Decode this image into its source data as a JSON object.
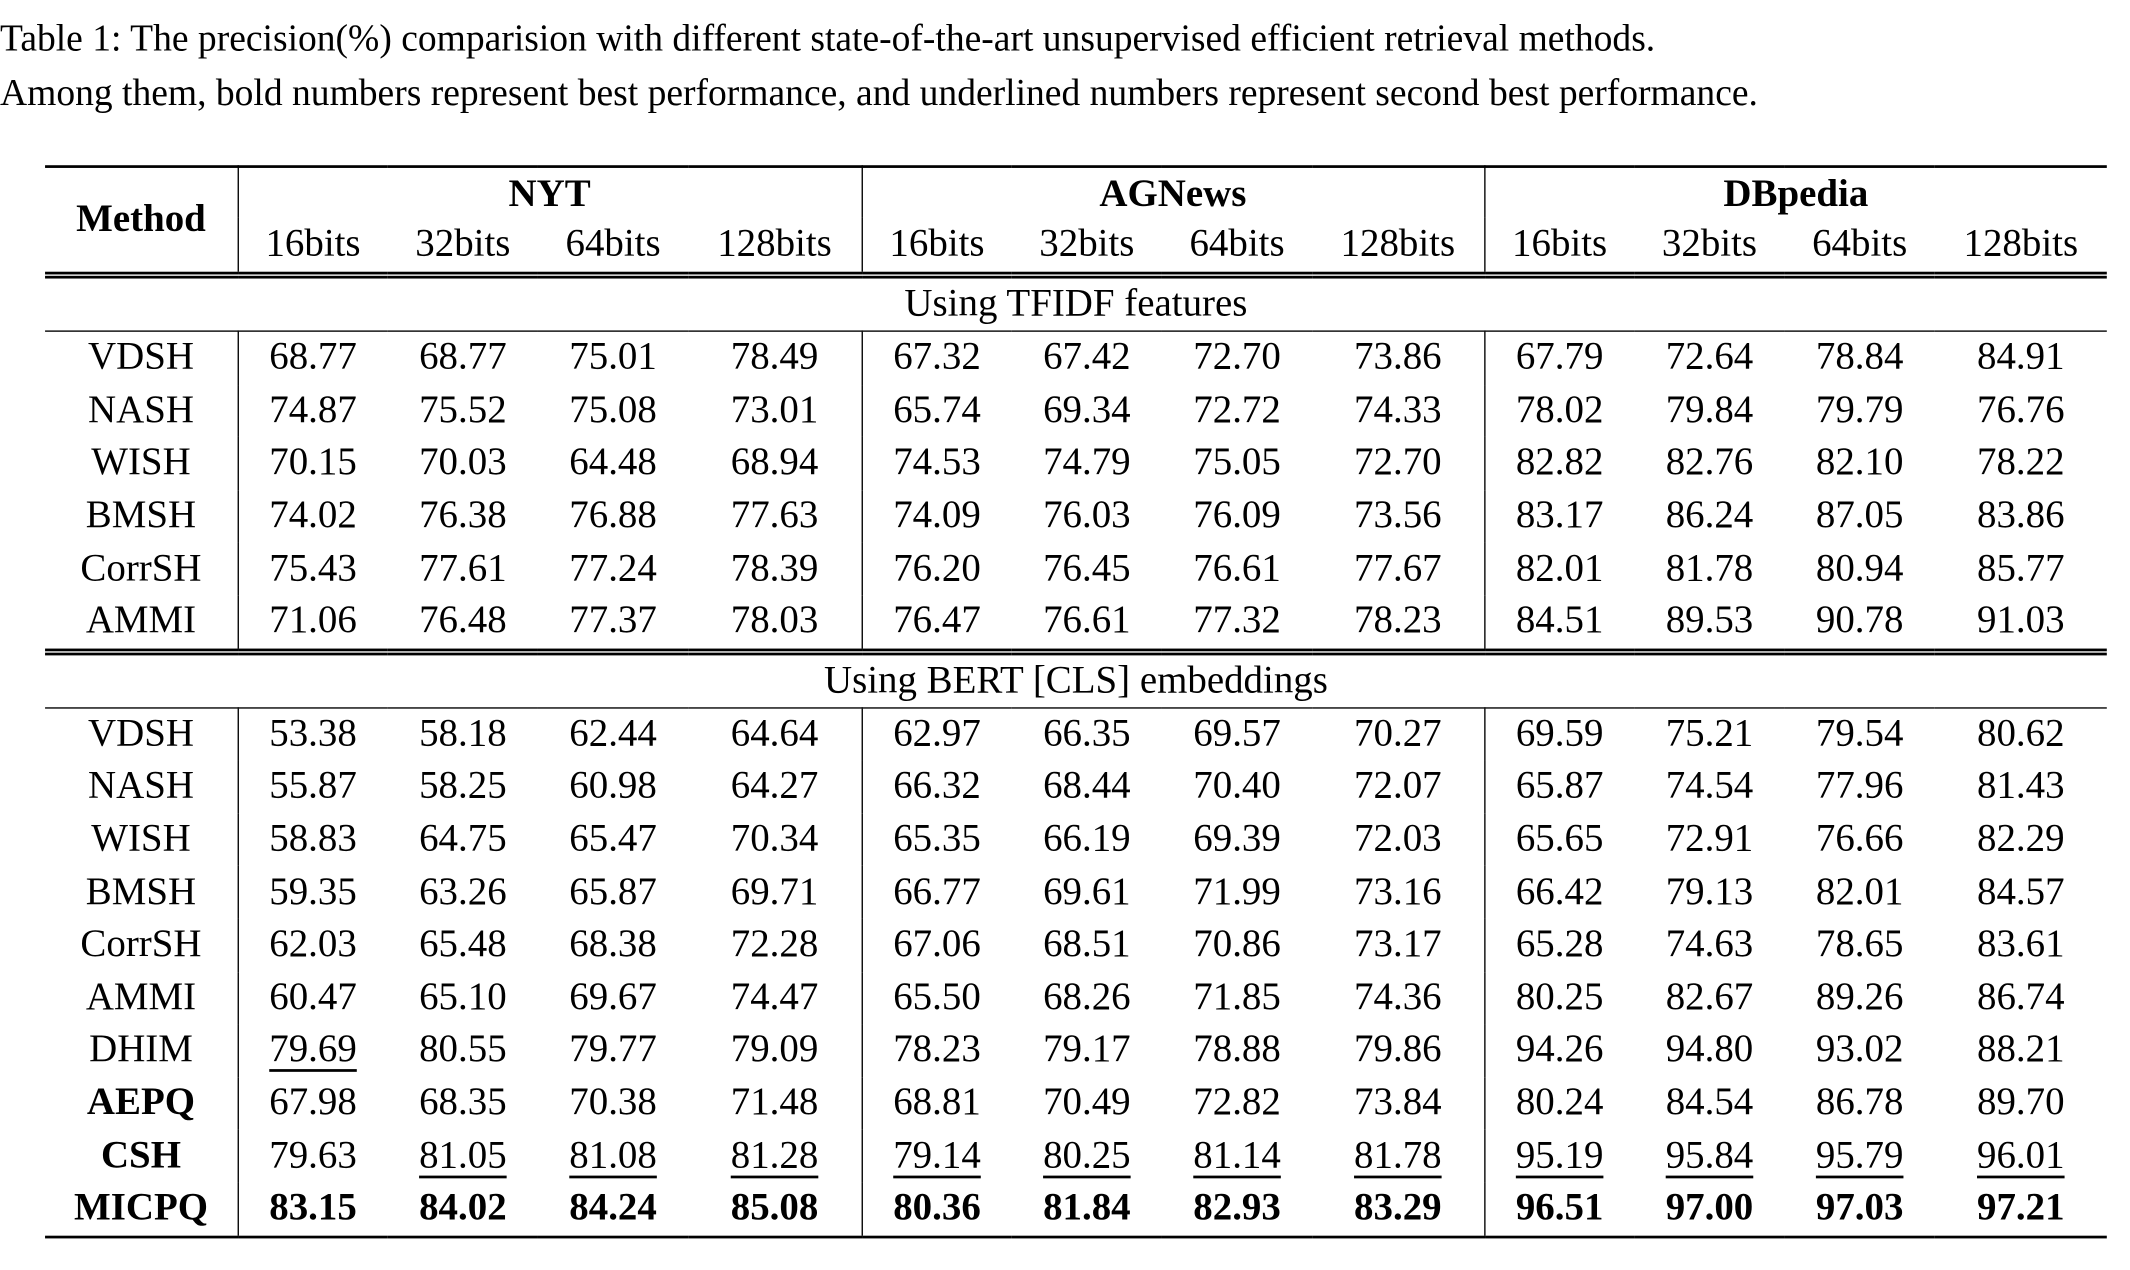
{
  "caption": {
    "line1": "Table 1: The precision(%) comparision with different state-of-the-art unsupervised efficient retrieval methods.",
    "line2": "Among them, bold numbers represent best performance, and underlined numbers represent second best performance."
  },
  "header": {
    "method": "Method",
    "datasets": [
      "NYT",
      "AGNews",
      "DBpedia"
    ],
    "bits": [
      "16bits",
      "32bits",
      "64bits",
      "128bits"
    ]
  },
  "sections": [
    {
      "title": "Using TFIDF features",
      "rows": [
        {
          "method": "VDSH",
          "values": [
            "68.77",
            "68.77",
            "75.01",
            "78.49",
            "67.32",
            "67.42",
            "72.70",
            "73.86",
            "67.79",
            "72.64",
            "78.84",
            "84.91"
          ]
        },
        {
          "method": "NASH",
          "values": [
            "74.87",
            "75.52",
            "75.08",
            "73.01",
            "65.74",
            "69.34",
            "72.72",
            "74.33",
            "78.02",
            "79.84",
            "79.79",
            "76.76"
          ]
        },
        {
          "method": "WISH",
          "values": [
            "70.15",
            "70.03",
            "64.48",
            "68.94",
            "74.53",
            "74.79",
            "75.05",
            "72.70",
            "82.82",
            "82.76",
            "82.10",
            "78.22"
          ]
        },
        {
          "method": "BMSH",
          "values": [
            "74.02",
            "76.38",
            "76.88",
            "77.63",
            "74.09",
            "76.03",
            "76.09",
            "73.56",
            "83.17",
            "86.24",
            "87.05",
            "83.86"
          ]
        },
        {
          "method": "CorrSH",
          "values": [
            "75.43",
            "77.61",
            "77.24",
            "78.39",
            "76.20",
            "76.45",
            "76.61",
            "77.67",
            "82.01",
            "81.78",
            "80.94",
            "85.77"
          ]
        },
        {
          "method": "AMMI",
          "values": [
            "71.06",
            "76.48",
            "77.37",
            "78.03",
            "76.47",
            "76.61",
            "77.32",
            "78.23",
            "84.51",
            "89.53",
            "90.78",
            "91.03"
          ]
        }
      ]
    },
    {
      "title": "Using BERT [CLS] embeddings",
      "rows": [
        {
          "method": "VDSH",
          "values": [
            "53.38",
            "58.18",
            "62.44",
            "64.64",
            "62.97",
            "66.35",
            "69.57",
            "70.27",
            "69.59",
            "75.21",
            "79.54",
            "80.62"
          ]
        },
        {
          "method": "NASH",
          "values": [
            "55.87",
            "58.25",
            "60.98",
            "64.27",
            "66.32",
            "68.44",
            "70.40",
            "72.07",
            "65.87",
            "74.54",
            "77.96",
            "81.43"
          ]
        },
        {
          "method": "WISH",
          "values": [
            "58.83",
            "64.75",
            "65.47",
            "70.34",
            "65.35",
            "66.19",
            "69.39",
            "72.03",
            "65.65",
            "72.91",
            "76.66",
            "82.29"
          ]
        },
        {
          "method": "BMSH",
          "values": [
            "59.35",
            "63.26",
            "65.87",
            "69.71",
            "66.77",
            "69.61",
            "71.99",
            "73.16",
            "66.42",
            "79.13",
            "82.01",
            "84.57"
          ]
        },
        {
          "method": "CorrSH",
          "values": [
            "62.03",
            "65.48",
            "68.38",
            "72.28",
            "67.06",
            "68.51",
            "70.86",
            "73.17",
            "65.28",
            "74.63",
            "78.65",
            "83.61"
          ]
        },
        {
          "method": "AMMI",
          "values": [
            "60.47",
            "65.10",
            "69.67",
            "74.47",
            "65.50",
            "68.26",
            "71.85",
            "74.36",
            "80.25",
            "82.67",
            "89.26",
            "86.74"
          ]
        },
        {
          "method": "DHIM",
          "values": [
            "79.69",
            "80.55",
            "79.77",
            "79.09",
            "78.23",
            "79.17",
            "78.88",
            "79.86",
            "94.26",
            "94.80",
            "93.02",
            "88.21"
          ],
          "underlined": [
            0
          ]
        },
        {
          "method": "AEPQ",
          "method_bold": true,
          "values": [
            "67.98",
            "68.35",
            "70.38",
            "71.48",
            "68.81",
            "70.49",
            "72.82",
            "73.84",
            "80.24",
            "84.54",
            "86.78",
            "89.70"
          ]
        },
        {
          "method": "CSH",
          "method_bold": true,
          "values": [
            "79.63",
            "81.05",
            "81.08",
            "81.28",
            "79.14",
            "80.25",
            "81.14",
            "81.78",
            "95.19",
            "95.84",
            "95.79",
            "96.01"
          ],
          "underlined": [
            1,
            2,
            3,
            4,
            5,
            6,
            7,
            8,
            9,
            10,
            11
          ]
        },
        {
          "method": "MICPQ",
          "method_bold": true,
          "values": [
            "83.15",
            "84.02",
            "84.24",
            "85.08",
            "80.36",
            "81.84",
            "82.93",
            "83.29",
            "96.51",
            "97.00",
            "97.03",
            "97.21"
          ],
          "bold": [
            0,
            1,
            2,
            3,
            4,
            5,
            6,
            7,
            8,
            9,
            10,
            11
          ]
        }
      ]
    }
  ]
}
